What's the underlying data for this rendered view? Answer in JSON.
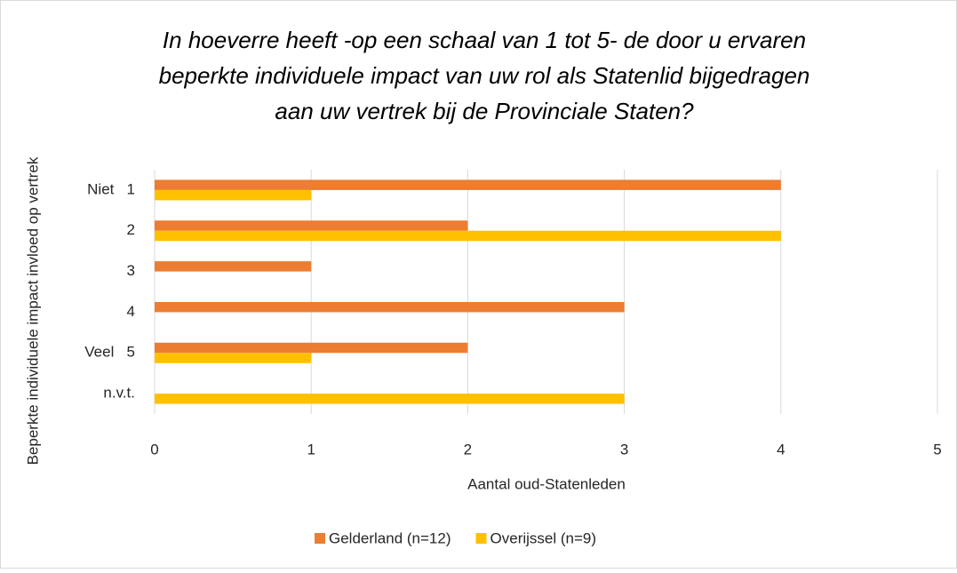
{
  "chart_data": {
    "type": "hbar",
    "title_lines": [
      "In hoeverre heeft -op een schaal van 1 tot 5- de door u ervaren",
      "beperkte individuele impact van uw rol als Statenlid bijgedragen",
      "aan uw vertrek bij de Provinciale Staten?"
    ],
    "x_label": "Aantal oud-Statenleden",
    "y_label": "Beperkte individuele impact invloed op vertrek",
    "categories": [
      "Niet   1",
      "2",
      "3",
      "4",
      "Veel   5",
      "n.v.t."
    ],
    "series": [
      {
        "name": "Gelderland (n=12)",
        "color": "#ed7d31",
        "values": [
          4,
          2,
          1,
          3,
          2,
          0
        ]
      },
      {
        "name": "Overijssel (n=9)",
        "color": "#ffc000",
        "values": [
          1,
          4,
          0,
          0,
          1,
          3
        ]
      }
    ],
    "xlim": [
      0,
      5
    ],
    "xticks": [
      0,
      1,
      2,
      3,
      4,
      5
    ],
    "grid": true,
    "legend": "bottom"
  }
}
